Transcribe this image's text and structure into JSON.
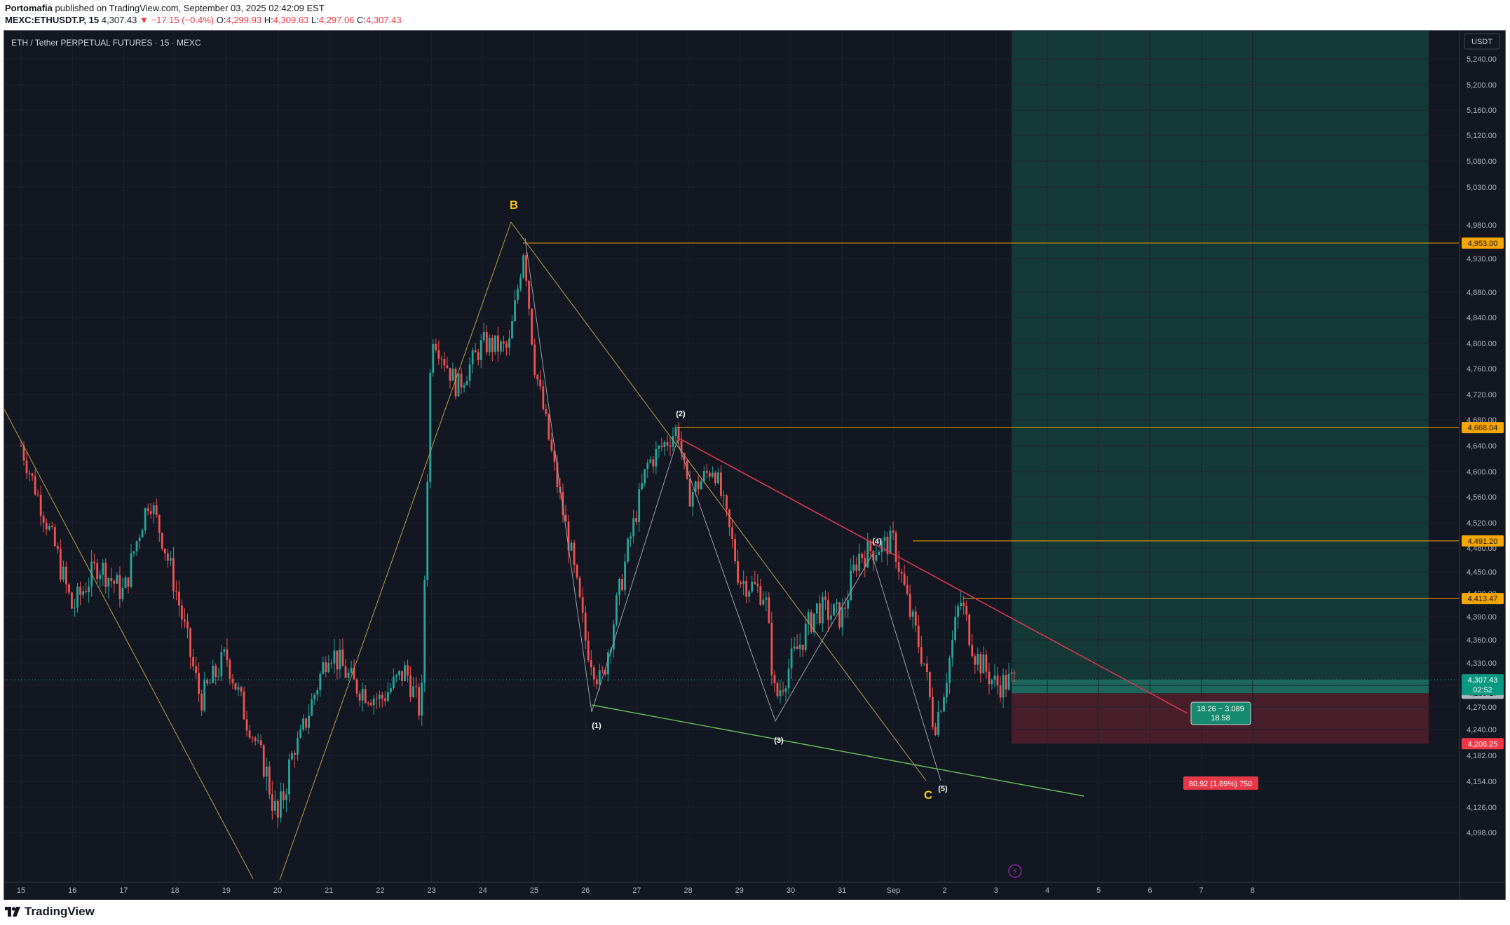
{
  "header": {
    "author": "Portomafia",
    "published_text": "published on TradingView.com, September 03, 2025 02:42:09 EST",
    "symbol": "MEXC:ETHUSDT.P, 15",
    "last": "4,307.43",
    "change": "−17.15 (−0.4%)",
    "o_label": "O:",
    "o_value": "4,299.93",
    "h_label": "H:",
    "h_value": "4,309.63",
    "l_label": "L:",
    "l_value": "4,297.06",
    "c_label": "C:",
    "c_value": "4,307.43"
  },
  "instrument_title": "ETH / Tether PERPETUAL FUTURES · 15 · MEXC",
  "currency_button": "USDT",
  "footer": {
    "logo_text": "TradingView"
  },
  "colors": {
    "background": "#131722",
    "candle_up": "#26a69a",
    "candle_down": "#ef5350",
    "price_line": "#f7a600",
    "target_zone": "#163f3b",
    "stop_zone": "#4a1f2b",
    "wave_line": "#b5a24a",
    "wave_label_yellow": "#f5c518",
    "resistance": "#d7384f",
    "support": "#6bbf59"
  },
  "chart_data": {
    "type": "candlestick",
    "symbol": "ETH / Tether PERPETUAL FUTURES · 15 · MEXC",
    "x_tick_labels": [
      "15",
      "16",
      "17",
      "18",
      "19",
      "20",
      "21",
      "22",
      "23",
      "24",
      "25",
      "26",
      "27",
      "28",
      "29",
      "30",
      "31",
      "Sep",
      "2",
      "3",
      "4",
      "5",
      "6",
      "7",
      "8"
    ],
    "y_tick_labels": [
      "5,240.00",
      "5,200.00",
      "5,160.00",
      "5,120.00",
      "5,080.00",
      "5,030.00",
      "4,980.00",
      "4,930.00",
      "4,880.00",
      "4,840.00",
      "4,800.00",
      "4,760.00",
      "4,720.00",
      "4,680.00",
      "4,640.00",
      "4,600.00",
      "4,560.00",
      "4,520.00",
      "4,480.00",
      "4,450.00",
      "4,420.00",
      "4,390.00",
      "4,360.00",
      "4,330.00",
      "4,300.00",
      "4,270.00",
      "4,240.00",
      "4,182.00",
      "4,154.00",
      "4,126.00",
      "4,098.00"
    ],
    "price_path": [
      [
        "15",
        4640
      ],
      [
        "15.5",
        4520
      ],
      [
        "16",
        4400
      ],
      [
        "16.5",
        4460
      ],
      [
        "17",
        4420
      ],
      [
        "17.5",
        4560
      ],
      [
        "18",
        4430
      ],
      [
        "18.5",
        4280
      ],
      [
        "19",
        4340
      ],
      [
        "19.5",
        4230
      ],
      [
        "20",
        4110
      ],
      [
        "20.5",
        4240
      ],
      [
        "21",
        4350
      ],
      [
        "21.5",
        4300
      ],
      [
        "22",
        4280
      ],
      [
        "22.5",
        4320
      ],
      [
        "22.8",
        4260
      ],
      [
        "23",
        4820
      ],
      [
        "23.5",
        4730
      ],
      [
        "24",
        4800
      ],
      [
        "24.5",
        4790
      ],
      [
        "24.8",
        4950
      ],
      [
        "25",
        4770
      ],
      [
        "25.5",
        4560
      ],
      [
        "26",
        4360
      ],
      [
        "26.3",
        4300
      ],
      [
        "26.8",
        4470
      ],
      [
        "27.2",
        4610
      ],
      [
        "27.8",
        4668
      ],
      [
        "28",
        4560
      ],
      [
        "28.5",
        4610
      ],
      [
        "29",
        4440
      ],
      [
        "29.5",
        4420
      ],
      [
        "29.7",
        4280
      ],
      [
        "30",
        4330
      ],
      [
        "30.5",
        4400
      ],
      [
        "31",
        4390
      ],
      [
        "31.3",
        4470
      ],
      [
        "Sep",
        4491
      ],
      [
        "Sep.3",
        4400
      ],
      [
        "Sep.6",
        4330
      ],
      [
        "Sep.8",
        4240
      ],
      [
        "2",
        4300
      ],
      [
        "2.3",
        4413
      ],
      [
        "2.6",
        4340
      ],
      [
        "3",
        4300
      ],
      [
        "3.4",
        4307.43
      ]
    ],
    "horizontal_levels": [
      {
        "label": "4,953.00",
        "price": 4953.0,
        "color": "#f7a600"
      },
      {
        "label": "4,668.04",
        "price": 4668.04,
        "color": "#f7a600"
      },
      {
        "label": "4,491.20",
        "price": 4491.2,
        "color": "#f7a600"
      },
      {
        "label": "4,413.47",
        "price": 4413.47,
        "color": "#f7a600"
      }
    ],
    "price_badges": {
      "last_price": "4,307.43",
      "countdown": "02:52",
      "entry": "4,289.17",
      "stop": "4,208.25"
    },
    "position_tool": {
      "stats_text_1": "18.26 − 3.089",
      "stats_text_2": "18.58",
      "risk_text": "80.92 (1.89%) 750",
      "entry": 4289.17,
      "stop": 4208.25
    },
    "wave_labels": [
      {
        "text": "B",
        "color": "yellow"
      },
      {
        "text": "(1)",
        "color": "white"
      },
      {
        "text": "(2)",
        "color": "white"
      },
      {
        "text": "(3)",
        "color": "white"
      },
      {
        "text": "(4)",
        "color": "white"
      },
      {
        "text": "(5)",
        "color": "white"
      },
      {
        "text": "C",
        "color": "yellow"
      }
    ]
  }
}
